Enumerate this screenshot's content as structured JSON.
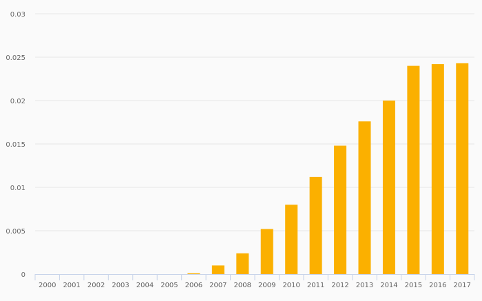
{
  "chart_data": {
    "type": "bar",
    "title": "",
    "xlabel": "",
    "ylabel": "",
    "categories": [
      "2000",
      "2001",
      "2002",
      "2003",
      "2004",
      "2005",
      "2006",
      "2007",
      "2008",
      "2009",
      "2010",
      "2011",
      "2012",
      "2013",
      "2014",
      "2015",
      "2016",
      "2017"
    ],
    "values": [
      0,
      0,
      0,
      0,
      0,
      0,
      0.0001,
      0.001,
      0.0024,
      0.0052,
      0.008,
      0.0112,
      0.0148,
      0.0176,
      0.02,
      0.024,
      0.0242,
      0.0243
    ],
    "ylim": [
      0,
      0.03
    ],
    "yticks": [
      "0",
      "0.005",
      "0.01",
      "0.015",
      "0.02",
      "0.025",
      "0.03"
    ],
    "grid": true,
    "bar_color": "#fbb000",
    "axis_color": "#c8d4ea",
    "grid_color": "#e6e6e6"
  }
}
